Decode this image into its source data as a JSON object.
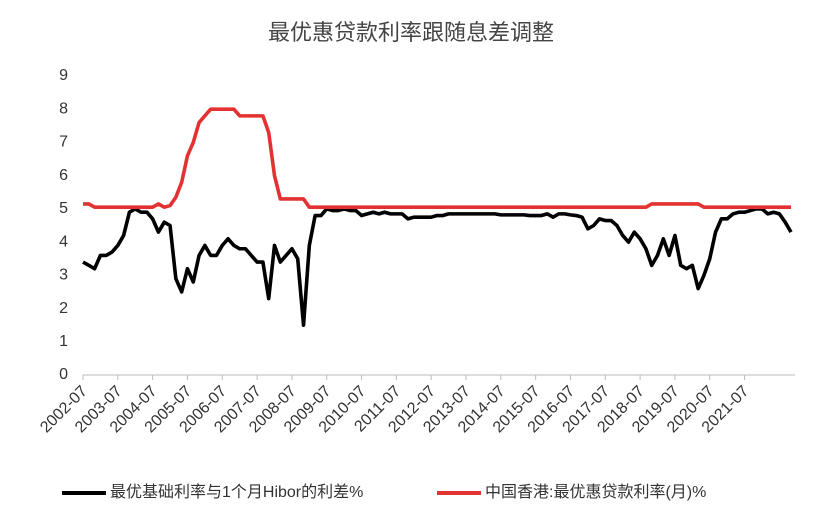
{
  "chart_data": {
    "type": "line",
    "title": "最优惠贷款利率跟随息差调整",
    "x": [
      "2002-07",
      "2002-09",
      "2002-11",
      "2003-01",
      "2003-03",
      "2003-05",
      "2003-07",
      "2003-09",
      "2003-11",
      "2004-01",
      "2004-03",
      "2004-05",
      "2004-07",
      "2004-09",
      "2004-11",
      "2005-01",
      "2005-03",
      "2005-05",
      "2005-07",
      "2005-09",
      "2005-11",
      "2006-01",
      "2006-03",
      "2006-05",
      "2006-07",
      "2006-09",
      "2006-11",
      "2007-01",
      "2007-03",
      "2007-05",
      "2007-07",
      "2007-09",
      "2007-11",
      "2008-01",
      "2008-03",
      "2008-05",
      "2008-07",
      "2008-09",
      "2008-11",
      "2009-01",
      "2009-03",
      "2009-05",
      "2009-07",
      "2009-09",
      "2009-11",
      "2010-01",
      "2010-03",
      "2010-05",
      "2010-07",
      "2010-09",
      "2010-11",
      "2011-01",
      "2011-03",
      "2011-05",
      "2011-07",
      "2011-09",
      "2011-11",
      "2012-01",
      "2012-03",
      "2012-05",
      "2012-07",
      "2012-09",
      "2012-11",
      "2013-01",
      "2013-03",
      "2013-05",
      "2013-07",
      "2013-09",
      "2013-11",
      "2014-01",
      "2014-03",
      "2014-05",
      "2014-07",
      "2014-09",
      "2014-11",
      "2015-01",
      "2015-03",
      "2015-05",
      "2015-07",
      "2015-09",
      "2015-11",
      "2016-01",
      "2016-03",
      "2016-05",
      "2016-07",
      "2016-09",
      "2016-11",
      "2017-01",
      "2017-03",
      "2017-05",
      "2017-07",
      "2017-09",
      "2017-11",
      "2018-01",
      "2018-03",
      "2018-05",
      "2018-07",
      "2018-09",
      "2018-11",
      "2019-01",
      "2019-03",
      "2019-05",
      "2019-07",
      "2019-09",
      "2019-11",
      "2020-01",
      "2020-03",
      "2020-05",
      "2020-07",
      "2020-09",
      "2020-11",
      "2021-01",
      "2021-03",
      "2021-05",
      "2021-07",
      "2021-09",
      "2021-11",
      "2022-01",
      "2022-03",
      "2022-05",
      "2022-07",
      "2022-09",
      "2022-11"
    ],
    "series": [
      {
        "name": "最优基础利率与1个月Hibor的利差%",
        "color": "#000000",
        "values": [
          3.4,
          3.3,
          3.2,
          3.6,
          3.6,
          3.7,
          3.9,
          4.2,
          4.9,
          5.0,
          4.9,
          4.9,
          4.7,
          4.3,
          4.6,
          4.5,
          2.9,
          2.5,
          3.2,
          2.8,
          3.6,
          3.9,
          3.6,
          3.6,
          3.9,
          4.1,
          3.9,
          3.8,
          3.8,
          3.6,
          3.4,
          3.4,
          2.3,
          3.9,
          3.4,
          3.6,
          3.8,
          3.5,
          1.5,
          3.9,
          4.8,
          4.8,
          5.0,
          4.95,
          4.95,
          5.0,
          4.95,
          4.95,
          4.8,
          4.85,
          4.9,
          4.85,
          4.9,
          4.85,
          4.85,
          4.85,
          4.7,
          4.75,
          4.75,
          4.75,
          4.75,
          4.8,
          4.8,
          4.85,
          4.85,
          4.85,
          4.85,
          4.85,
          4.85,
          4.85,
          4.85,
          4.85,
          4.82,
          4.82,
          4.82,
          4.82,
          4.82,
          4.8,
          4.8,
          4.8,
          4.85,
          4.75,
          4.85,
          4.85,
          4.82,
          4.8,
          4.75,
          4.4,
          4.5,
          4.7,
          4.65,
          4.65,
          4.5,
          4.2,
          4.0,
          4.3,
          4.1,
          3.8,
          3.3,
          3.6,
          4.1,
          3.6,
          4.2,
          3.3,
          3.2,
          3.3,
          2.6,
          3.0,
          3.5,
          4.3,
          4.7,
          4.7,
          4.85,
          4.9,
          4.9,
          4.95,
          5.0,
          5.0,
          4.85,
          4.9,
          4.85,
          4.6,
          4.3
        ]
      },
      {
        "name": "中国香港:最优惠贷款利率(月)%",
        "color": "#e33232",
        "values": [
          5.15,
          5.15,
          5.05,
          5.05,
          5.05,
          5.05,
          5.05,
          5.05,
          5.05,
          5.05,
          5.05,
          5.05,
          5.05,
          5.15,
          5.05,
          5.1,
          5.35,
          5.8,
          6.6,
          7.0,
          7.6,
          7.8,
          8.0,
          8.0,
          8.0,
          8.0,
          8.0,
          7.8,
          7.8,
          7.8,
          7.8,
          7.8,
          7.3,
          6.0,
          5.3,
          5.3,
          5.3,
          5.3,
          5.3,
          5.05,
          5.05,
          5.05,
          5.05,
          5.05,
          5.05,
          5.05,
          5.05,
          5.05,
          5.05,
          5.05,
          5.05,
          5.05,
          5.05,
          5.05,
          5.05,
          5.05,
          5.05,
          5.05,
          5.05,
          5.05,
          5.05,
          5.05,
          5.05,
          5.05,
          5.05,
          5.05,
          5.05,
          5.05,
          5.05,
          5.05,
          5.05,
          5.05,
          5.05,
          5.05,
          5.05,
          5.05,
          5.05,
          5.05,
          5.05,
          5.05,
          5.05,
          5.05,
          5.05,
          5.05,
          5.05,
          5.05,
          5.05,
          5.05,
          5.05,
          5.05,
          5.05,
          5.05,
          5.05,
          5.05,
          5.05,
          5.05,
          5.05,
          5.05,
          5.15,
          5.15,
          5.15,
          5.15,
          5.15,
          5.15,
          5.15,
          5.15,
          5.15,
          5.05,
          5.05,
          5.05,
          5.05,
          5.05,
          5.05,
          5.05,
          5.05,
          5.05,
          5.05,
          5.05,
          5.05,
          5.05,
          5.05,
          5.05,
          5.05
        ]
      }
    ],
    "xlim": [
      "2002-07",
      "2022-11"
    ],
    "xticks": [
      "2002-07",
      "2003-07",
      "2004-07",
      "2005-07",
      "2006-07",
      "2007-07",
      "2008-07",
      "2009-07",
      "2010-07",
      "2011-07",
      "2012-07",
      "2013-07",
      "2014-07",
      "2015-07",
      "2016-07",
      "2017-07",
      "2018-07",
      "2019-07",
      "2020-07",
      "2021-07"
    ],
    "ylim": [
      0,
      9
    ],
    "yticks": [
      0,
      1,
      2,
      3,
      4,
      5,
      6,
      7,
      8,
      9
    ],
    "grid": false,
    "legend": "bottom"
  }
}
